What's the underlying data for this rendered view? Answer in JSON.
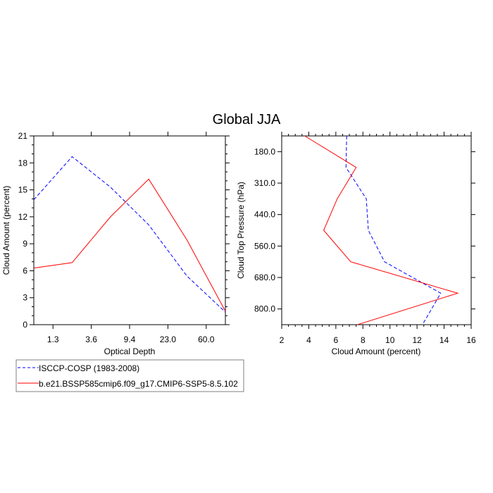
{
  "title": "Global JJA",
  "colors": {
    "model": "#ff0000",
    "obs": "#0000ff",
    "axis": "#000000",
    "legend_border": "#808080"
  },
  "legend": {
    "placement": "bottom-left",
    "entries": [
      {
        "label": "ISCCP-COSP (1983-2008)",
        "color": "#0000ff",
        "style": "dashed"
      },
      {
        "label": "b.e21.BSSP585cmip6.f09_g17.CMIP6-SSP5-8.5.102",
        "color": "#ff0000",
        "style": "solid"
      }
    ]
  },
  "chart_data": [
    {
      "type": "line",
      "xlabel": "Optical Depth",
      "ylabel": "Cloud Amount (percent)",
      "x_tick_labels": [
        "1.3",
        "3.6",
        "9.4",
        "23.0",
        "60.0"
      ],
      "ylim": [
        0,
        21
      ],
      "y_ticks": [
        0,
        3,
        6,
        9,
        12,
        15,
        18,
        21
      ],
      "grid": false,
      "series": [
        {
          "name": "ISCCP-COSP (1983-2008)",
          "style": "dashed",
          "color": "#0000ff",
          "values": [
            13.9,
            18.7,
            15.3,
            11.1,
            5.4,
            1.4
          ]
        },
        {
          "name": "b.e21.BSSP585cmip6.f09_g17.CMIP6-SSP5-8.5.102",
          "style": "solid",
          "color": "#ff0000",
          "values": [
            6.3,
            6.9,
            12.0,
            16.2,
            9.4,
            1.5
          ]
        }
      ]
    },
    {
      "type": "line",
      "xlabel": "Cloud Amount (percent)",
      "ylabel": "Cloud Top Pressure (hPa)",
      "y_tick_labels": [
        "180.0",
        "310.0",
        "440.0",
        "560.0",
        "680.0",
        "800.0"
      ],
      "xlim": [
        2,
        16
      ],
      "x_ticks": [
        2,
        4,
        6,
        8,
        10,
        12,
        14,
        16
      ],
      "grid": false,
      "series": [
        {
          "name": "ISCCP-COSP (1983-2008)",
          "style": "dashed",
          "color": "#0000ff",
          "values": [
            6.8,
            6.75,
            8.25,
            8.4,
            9.6,
            13.75,
            12.4
          ]
        },
        {
          "name": "b.e21.BSSP585cmip6.f09_g17.CMIP6-SSP5-8.5.102",
          "style": "solid",
          "color": "#ff0000",
          "values": [
            3.7,
            7.5,
            6.1,
            5.1,
            7.1,
            15.0,
            7.6
          ]
        }
      ]
    }
  ]
}
